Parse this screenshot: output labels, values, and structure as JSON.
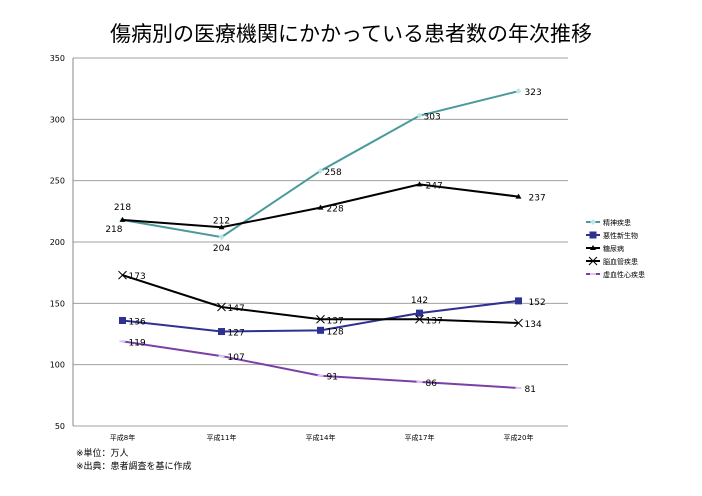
{
  "chart_data": {
    "type": "line",
    "title": "傷病別の医療機関にかかっている患者数の年次推移",
    "categories": [
      "平成8年",
      "平成11年",
      "平成14年",
      "平成17年",
      "平成20年"
    ],
    "ylim": [
      50,
      350
    ],
    "yticks": [
      50,
      100,
      150,
      200,
      250,
      300,
      350
    ],
    "grid": true,
    "legend_position": "right",
    "series": [
      {
        "name": "精神疾患",
        "color": "#4a9a9c",
        "marker": "diamond",
        "values": [
          218,
          204,
          258,
          303,
          323
        ]
      },
      {
        "name": "悪性新生物",
        "color": "#2e3192",
        "marker": "square",
        "values": [
          136,
          127,
          128,
          142,
          152
        ]
      },
      {
        "name": "糖尿病",
        "color": "#000000",
        "marker": "triangle",
        "values": [
          218,
          212,
          228,
          247,
          237
        ]
      },
      {
        "name": "脳血管疾患",
        "color": "#000000",
        "marker": "x",
        "values": [
          173,
          147,
          137,
          137,
          134
        ]
      },
      {
        "name": "虚血性心疾患",
        "color": "#7b3fa6",
        "marker": "dash",
        "values": [
          119,
          107,
          91,
          86,
          81
        ]
      }
    ]
  },
  "notes": [
    "※単位：万人",
    "※出典：患者調査を基に作成"
  ]
}
